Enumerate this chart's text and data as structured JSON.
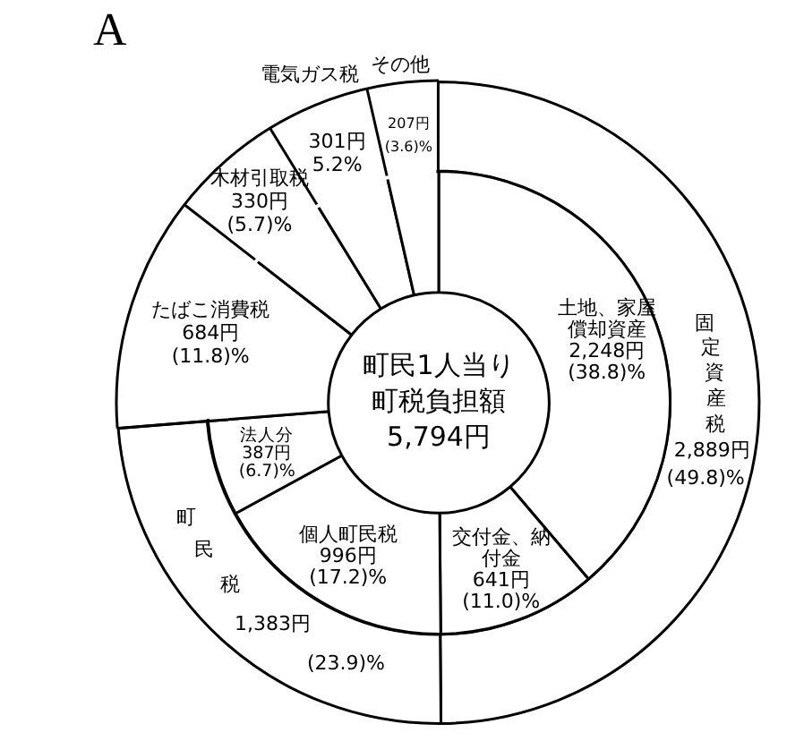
{
  "chart_data": [
    {
      "type": "donut",
      "title": "A",
      "legend": false,
      "categories": [
        "土地、家屋償却資産",
        "交付金、納付金",
        "個人町民税",
        "法人分",
        "たばこ消費税",
        "木材引取税",
        "電気ガス税",
        "その他"
      ],
      "values": [
        2248,
        641,
        996,
        387,
        684,
        330,
        301,
        207
      ],
      "value_labels": [
        "2,248円 (38.8)%",
        "641円 (11.0)%",
        "996円 (17.2)%",
        "387円 (6.7)%",
        "684円 (11.8)%",
        "330円 (5.7)%",
        "301円 5.2%",
        "207円 (3.6)%"
      ],
      "colors": [
        "#ffffff",
        "#ffffff",
        "#ffffff",
        "#ffffff",
        "#ffffff",
        "#ffffff",
        "#ffffff",
        "#ffffff"
      ],
      "annotations": [
        "町民1人当り町税負担額",
        "5,794円"
      ]
    },
    {
      "type": "donut",
      "legend": false,
      "categories": [
        "固定資産税",
        "町民税"
      ],
      "values": [
        2889,
        1383
      ],
      "value_labels": [
        "2,889円 (49.8)%",
        "1,383円 (23.9)%"
      ],
      "colors": [
        "#ffffff",
        "#ffffff"
      ]
    }
  ]
}
